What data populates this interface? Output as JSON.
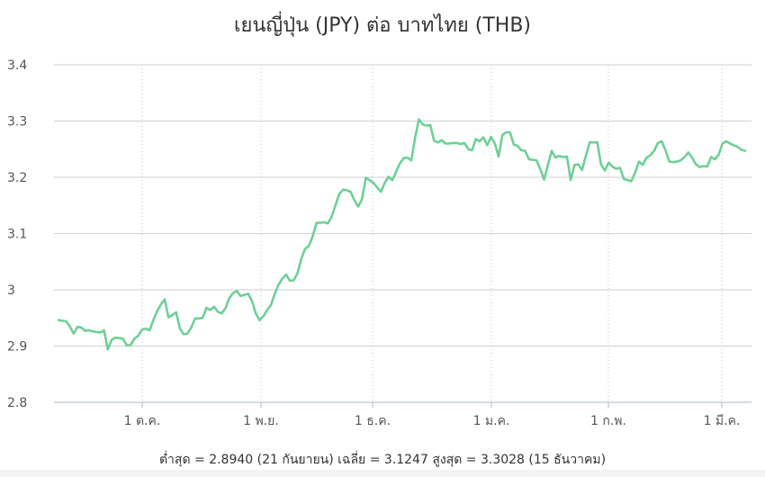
{
  "chart_data": {
    "type": "line",
    "title": "เยนญี่ปุ่น (JPY) ต่อ บาทไทย (THB)",
    "xlabel": "",
    "ylabel": "",
    "ylim": [
      2.8,
      3.4
    ],
    "y_ticks": [
      "3.4",
      "3.3",
      "3.2",
      "3.1",
      "3",
      "2.9",
      "2.8"
    ],
    "x_ticks": [
      "1 ต.ค.",
      "1 พ.ย.",
      "1 ธ.ค.",
      "1 ม.ค.",
      "1 ก.พ.",
      "1 มี.ค."
    ],
    "grid": true,
    "line_color": "#6fcf97",
    "series": [
      {
        "values": [
          2.946,
          2.945,
          2.944,
          2.935,
          2.922,
          2.934,
          2.933,
          2.927,
          2.928,
          2.926,
          2.925,
          2.924,
          2.928,
          2.894,
          2.911,
          2.915,
          2.914,
          2.913,
          2.901,
          2.902,
          2.913,
          2.918,
          2.929,
          2.931,
          2.928,
          2.946,
          2.962,
          2.974,
          2.983,
          2.951,
          2.955,
          2.96,
          2.931,
          2.921,
          2.922,
          2.933,
          2.949,
          2.949,
          2.95,
          2.968,
          2.964,
          2.97,
          2.961,
          2.958,
          2.967,
          2.985,
          2.994,
          2.998,
          2.989,
          2.991,
          2.993,
          2.98,
          2.958,
          2.946,
          2.953,
          2.964,
          2.973,
          2.993,
          3.009,
          3.02,
          3.027,
          3.016,
          3.017,
          3.03,
          3.055,
          3.073,
          3.078,
          3.095,
          3.119,
          3.119,
          3.12,
          3.118,
          3.13,
          3.15,
          3.17,
          3.178,
          3.177,
          3.174,
          3.159,
          3.148,
          3.161,
          3.199,
          3.195,
          3.19,
          3.182,
          3.174,
          3.19,
          3.201,
          3.195,
          3.21,
          3.225,
          3.234,
          3.235,
          3.23,
          3.271,
          3.303,
          3.294,
          3.292,
          3.293,
          3.265,
          3.262,
          3.266,
          3.26,
          3.26,
          3.261,
          3.261,
          3.259,
          3.261,
          3.25,
          3.248,
          3.268,
          3.264,
          3.271,
          3.257,
          3.272,
          3.26,
          3.237,
          3.275,
          3.28,
          3.28,
          3.258,
          3.256,
          3.248,
          3.247,
          3.232,
          3.231,
          3.23,
          3.214,
          3.196,
          3.222,
          3.247,
          3.235,
          3.238,
          3.236,
          3.237,
          3.195,
          3.222,
          3.223,
          3.213,
          3.238,
          3.262,
          3.262,
          3.262,
          3.223,
          3.212,
          3.226,
          3.219,
          3.215,
          3.217,
          3.197,
          3.195,
          3.193,
          3.209,
          3.228,
          3.222,
          3.235,
          3.239,
          3.247,
          3.261,
          3.264,
          3.248,
          3.228,
          3.227,
          3.228,
          3.23,
          3.236,
          3.244,
          3.235,
          3.223,
          3.218,
          3.22,
          3.219,
          3.236,
          3.232,
          3.24,
          3.26,
          3.264,
          3.26,
          3.257,
          3.254,
          3.249,
          3.247
        ]
      }
    ]
  },
  "summary": "ต่ำสุด = 2.8940 (21 กันยายน) เฉลี่ย = 3.1247 สูงสุด = 3.3028 (15 ธันวาคม)"
}
